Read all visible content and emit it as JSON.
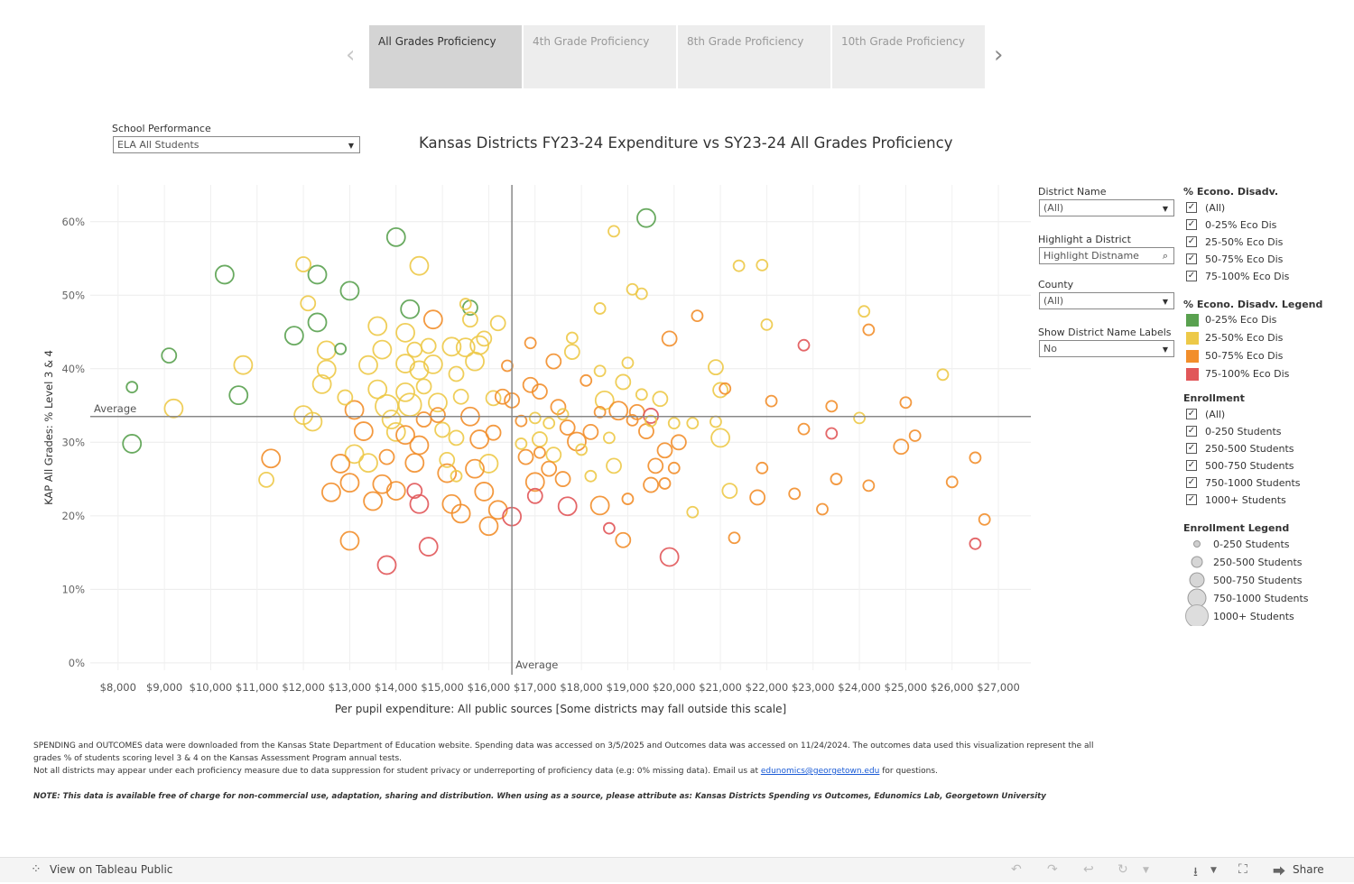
{
  "tabs": [
    "All Grades Proficiency",
    "4th Grade Proficiency",
    "8th Grade Proficiency",
    "10th Grade Proficiency"
  ],
  "nav": {
    "prev_icon": "chevron-left-icon",
    "next_icon": "chevron-right-icon"
  },
  "filters": {
    "school_performance_label": "School Performance",
    "school_performance_value": "ELA All Students",
    "district_name_label": "District Name",
    "district_name_value": "(All)",
    "highlight_label": "Highlight a District",
    "highlight_placeholder": "Highlight Distname",
    "county_label": "County",
    "county_value": "(All)",
    "labels_label": "Show District Name Labels",
    "labels_value": "No"
  },
  "eco_filter": {
    "title": "% Econo. Disadv.",
    "items": [
      "(All)",
      "0-25% Eco Dis",
      "25-50% Eco Dis",
      "50-75% Eco Dis",
      "75-100% Eco Dis"
    ]
  },
  "eco_legend": {
    "title": "% Econo. Disadv. Legend",
    "items": [
      {
        "label": "0-25% Eco Dis",
        "color": "#59a14f"
      },
      {
        "label": "25-50% Eco Dis",
        "color": "#edc948"
      },
      {
        "label": "50-75% Eco Dis",
        "color": "#f28e2b"
      },
      {
        "label": "75-100% Eco Dis",
        "color": "#e15759"
      }
    ]
  },
  "enroll_filter": {
    "title": "Enrollment",
    "items": [
      "(All)",
      "0-250 Students",
      "250-500 Students",
      "500-750 Students",
      "750-1000 Students",
      "1000+ Students"
    ]
  },
  "enroll_legend": {
    "title": "Enrollment Legend",
    "items": [
      "0-250 Students",
      "250-500 Students",
      "500-750 Students",
      "750-1000 Students",
      "1000+ Students"
    ]
  },
  "chart_data": {
    "type": "scatter",
    "title": "Kansas Districts FY23-24 Expenditure vs SY23-24 All Grades Proficiency",
    "xlabel": "Per pupil expenditure: All public sources [Some districts may fall outside this scale]",
    "ylabel": "KAP All Grades: % Level 3 & 4",
    "xlim": [
      7400,
      27700
    ],
    "ylim": [
      -1,
      65
    ],
    "x_ticks": [
      "$8,000",
      "$9,000",
      "$10,000",
      "$11,000",
      "$12,000",
      "$13,000",
      "$14,000",
      "$15,000",
      "$16,000",
      "$17,000",
      "$18,000",
      "$19,000",
      "$20,000",
      "$21,000",
      "$22,000",
      "$23,000",
      "$24,000",
      "$25,000",
      "$26,000",
      "$27,000"
    ],
    "x_tick_values": [
      8000,
      9000,
      10000,
      11000,
      12000,
      13000,
      14000,
      15000,
      16000,
      17000,
      18000,
      19000,
      20000,
      21000,
      22000,
      23000,
      24000,
      25000,
      26000,
      27000
    ],
    "y_ticks": [
      "0%",
      "10%",
      "20%",
      "30%",
      "40%",
      "50%",
      "60%"
    ],
    "y_tick_values": [
      0,
      10,
      20,
      30,
      40,
      50,
      60
    ],
    "reference_lines": {
      "x_average": 16500,
      "y_average": 33.5,
      "label": "Average"
    },
    "gridlines": true,
    "points": [
      [
        8300,
        37.5,
        1,
        0
      ],
      [
        8300,
        29.8,
        3,
        0
      ],
      [
        9100,
        41.8,
        2,
        0
      ],
      [
        10300,
        52.8,
        3,
        0
      ],
      [
        10600,
        36.4,
        3,
        0
      ],
      [
        11800,
        44.5,
        3,
        0
      ],
      [
        12300,
        52.8,
        3,
        0
      ],
      [
        12300,
        46.3,
        3,
        0
      ],
      [
        12800,
        42.7,
        1,
        0
      ],
      [
        13000,
        50.6,
        3,
        0
      ],
      [
        14000,
        57.9,
        3,
        0
      ],
      [
        14300,
        48.1,
        3,
        0
      ],
      [
        15600,
        48.3,
        2,
        0
      ],
      [
        19400,
        60.5,
        3,
        0
      ],
      [
        9200,
        34.6,
        3,
        1
      ],
      [
        10700,
        40.5,
        3,
        1
      ],
      [
        11200,
        24.9,
        2,
        1
      ],
      [
        12000,
        54.2,
        2,
        1
      ],
      [
        12000,
        33.7,
        3,
        1
      ],
      [
        12100,
        48.9,
        2,
        1
      ],
      [
        12200,
        32.8,
        3,
        1
      ],
      [
        12500,
        42.5,
        3,
        1
      ],
      [
        12500,
        39.9,
        3,
        1
      ],
      [
        12400,
        37.9,
        3,
        1
      ],
      [
        12900,
        36.1,
        2,
        1
      ],
      [
        13100,
        28.4,
        3,
        1
      ],
      [
        13400,
        40.5,
        3,
        1
      ],
      [
        13400,
        27.2,
        3,
        1
      ],
      [
        13600,
        45.8,
        3,
        1
      ],
      [
        13700,
        42.6,
        3,
        1
      ],
      [
        13600,
        37.2,
        3,
        1
      ],
      [
        13800,
        34.9,
        4,
        1
      ],
      [
        13900,
        33.1,
        3,
        1
      ],
      [
        14000,
        31.4,
        3,
        1
      ],
      [
        14200,
        44.9,
        3,
        1
      ],
      [
        14200,
        40.7,
        3,
        1
      ],
      [
        14200,
        36.8,
        3,
        1
      ],
      [
        14300,
        35.1,
        4,
        1
      ],
      [
        14400,
        42.6,
        2,
        1
      ],
      [
        14500,
        54.0,
        3,
        1
      ],
      [
        14500,
        39.8,
        3,
        1
      ],
      [
        14600,
        37.6,
        2,
        1
      ],
      [
        14700,
        43.1,
        2,
        1
      ],
      [
        14800,
        40.6,
        3,
        1
      ],
      [
        14900,
        35.4,
        3,
        1
      ],
      [
        15000,
        31.7,
        2,
        1
      ],
      [
        15200,
        43.0,
        3,
        1
      ],
      [
        15300,
        39.3,
        2,
        1
      ],
      [
        15400,
        36.2,
        2,
        1
      ],
      [
        15500,
        42.9,
        3,
        1
      ],
      [
        15600,
        46.7,
        2,
        1
      ],
      [
        15700,
        41.0,
        3,
        1
      ],
      [
        15800,
        43.2,
        3,
        1
      ],
      [
        15900,
        44.1,
        2,
        1
      ],
      [
        15500,
        48.8,
        1,
        1
      ],
      [
        16200,
        46.2,
        2,
        1
      ],
      [
        16100,
        36.0,
        2,
        1
      ],
      [
        16000,
        27.1,
        3,
        1
      ],
      [
        15300,
        30.6,
        2,
        1
      ],
      [
        15100,
        27.6,
        2,
        1
      ],
      [
        15300,
        25.4,
        1,
        1
      ],
      [
        16700,
        29.8,
        1,
        1
      ],
      [
        17000,
        33.3,
        1,
        1
      ],
      [
        17100,
        30.4,
        2,
        1
      ],
      [
        17300,
        32.6,
        1,
        1
      ],
      [
        17400,
        28.3,
        2,
        1
      ],
      [
        17800,
        42.3,
        2,
        1
      ],
      [
        17800,
        44.2,
        1,
        1
      ],
      [
        17600,
        33.8,
        1,
        1
      ],
      [
        18000,
        29.0,
        1,
        1
      ],
      [
        18200,
        25.4,
        1,
        1
      ],
      [
        18400,
        48.2,
        1,
        1
      ],
      [
        18400,
        39.7,
        1,
        1
      ],
      [
        18500,
        35.7,
        3,
        1
      ],
      [
        18600,
        30.6,
        1,
        1
      ],
      [
        18700,
        26.8,
        2,
        1
      ],
      [
        18700,
        58.7,
        1,
        1
      ],
      [
        18900,
        38.2,
        2,
        1
      ],
      [
        19000,
        40.8,
        1,
        1
      ],
      [
        19100,
        50.8,
        1,
        1
      ],
      [
        19300,
        50.2,
        1,
        1
      ],
      [
        19300,
        36.5,
        1,
        1
      ],
      [
        19500,
        32.9,
        1,
        1
      ],
      [
        19700,
        35.9,
        2,
        1
      ],
      [
        20000,
        32.6,
        1,
        1
      ],
      [
        20400,
        20.5,
        1,
        1
      ],
      [
        20400,
        32.6,
        1,
        1
      ],
      [
        20900,
        40.2,
        2,
        1
      ],
      [
        21000,
        37.1,
        2,
        1
      ],
      [
        21000,
        30.6,
        3,
        1
      ],
      [
        21400,
        54.0,
        1,
        1
      ],
      [
        21900,
        54.1,
        1,
        1
      ],
      [
        22000,
        46.0,
        1,
        1
      ],
      [
        24100,
        47.8,
        1,
        1
      ],
      [
        24000,
        33.3,
        1,
        1
      ],
      [
        25800,
        39.2,
        1,
        1
      ],
      [
        20900,
        32.8,
        1,
        1
      ],
      [
        21200,
        23.4,
        2,
        1
      ],
      [
        11300,
        27.8,
        3,
        2
      ],
      [
        12600,
        23.2,
        3,
        2
      ],
      [
        12800,
        27.1,
        3,
        2
      ],
      [
        13000,
        24.5,
        3,
        2
      ],
      [
        13000,
        16.6,
        3,
        2
      ],
      [
        13100,
        34.4,
        3,
        2
      ],
      [
        13300,
        31.5,
        3,
        2
      ],
      [
        13500,
        22.0,
        3,
        2
      ],
      [
        13700,
        24.3,
        3,
        2
      ],
      [
        13800,
        28.0,
        2,
        2
      ],
      [
        14000,
        23.4,
        3,
        2
      ],
      [
        14200,
        31.0,
        3,
        2
      ],
      [
        14400,
        27.2,
        3,
        2
      ],
      [
        14500,
        29.6,
        3,
        2
      ],
      [
        14600,
        33.1,
        2,
        2
      ],
      [
        14800,
        46.7,
        3,
        2
      ],
      [
        14900,
        33.7,
        2,
        2
      ],
      [
        15100,
        25.8,
        3,
        2
      ],
      [
        15200,
        21.6,
        3,
        2
      ],
      [
        15400,
        20.3,
        3,
        2
      ],
      [
        15600,
        33.5,
        3,
        2
      ],
      [
        15700,
        26.4,
        3,
        2
      ],
      [
        15800,
        30.4,
        3,
        2
      ],
      [
        15900,
        23.3,
        3,
        2
      ],
      [
        16000,
        18.6,
        3,
        2
      ],
      [
        16100,
        31.3,
        2,
        2
      ],
      [
        16200,
        20.8,
        3,
        2
      ],
      [
        16300,
        36.2,
        2,
        2
      ],
      [
        16400,
        40.4,
        1,
        2
      ],
      [
        16500,
        35.7,
        2,
        2
      ],
      [
        16700,
        32.9,
        1,
        2
      ],
      [
        16800,
        28.0,
        2,
        2
      ],
      [
        16900,
        37.8,
        2,
        2
      ],
      [
        17000,
        24.6,
        3,
        2
      ],
      [
        17100,
        36.9,
        2,
        2
      ],
      [
        17300,
        26.4,
        2,
        2
      ],
      [
        17400,
        41.0,
        2,
        2
      ],
      [
        17600,
        25.0,
        2,
        2
      ],
      [
        17700,
        32.0,
        2,
        2
      ],
      [
        17900,
        30.1,
        3,
        2
      ],
      [
        18100,
        38.4,
        1,
        2
      ],
      [
        18200,
        31.4,
        2,
        2
      ],
      [
        18400,
        21.4,
        3,
        2
      ],
      [
        18800,
        34.3,
        3,
        2
      ],
      [
        19000,
        22.3,
        1,
        2
      ],
      [
        19200,
        34.1,
        2,
        2
      ],
      [
        19400,
        31.5,
        2,
        2
      ],
      [
        19500,
        24.2,
        2,
        2
      ],
      [
        19600,
        26.8,
        2,
        2
      ],
      [
        19800,
        28.9,
        2,
        2
      ],
      [
        19900,
        44.1,
        2,
        2
      ],
      [
        20000,
        26.5,
        1,
        2
      ],
      [
        20100,
        30.0,
        2,
        2
      ],
      [
        19800,
        24.4,
        1,
        2
      ],
      [
        20500,
        47.2,
        1,
        2
      ],
      [
        21100,
        37.3,
        1,
        2
      ],
      [
        21300,
        17.0,
        1,
        2
      ],
      [
        21800,
        22.5,
        2,
        2
      ],
      [
        21900,
        26.5,
        1,
        2
      ],
      [
        22100,
        35.6,
        1,
        2
      ],
      [
        22600,
        23.0,
        1,
        2
      ],
      [
        22800,
        31.8,
        1,
        2
      ],
      [
        23200,
        20.9,
        1,
        2
      ],
      [
        23400,
        34.9,
        1,
        2
      ],
      [
        23500,
        25.0,
        1,
        2
      ],
      [
        24200,
        45.3,
        1,
        2
      ],
      [
        24200,
        24.1,
        1,
        2
      ],
      [
        24900,
        29.4,
        2,
        2
      ],
      [
        25000,
        35.4,
        1,
        2
      ],
      [
        25200,
        30.9,
        1,
        2
      ],
      [
        26000,
        24.6,
        1,
        2
      ],
      [
        26500,
        27.9,
        1,
        2
      ],
      [
        26700,
        19.5,
        1,
        2
      ],
      [
        18900,
        16.7,
        2,
        2
      ],
      [
        16900,
        43.5,
        1,
        2
      ],
      [
        19100,
        33.0,
        1,
        2
      ],
      [
        18400,
        34.1,
        1,
        2
      ],
      [
        17100,
        28.6,
        1,
        2
      ],
      [
        17500,
        34.8,
        2,
        2
      ],
      [
        13800,
        13.3,
        3,
        3
      ],
      [
        14400,
        23.4,
        2,
        3
      ],
      [
        14500,
        21.6,
        3,
        3
      ],
      [
        14700,
        15.8,
        3,
        3
      ],
      [
        16500,
        19.9,
        3,
        3
      ],
      [
        17000,
        22.7,
        2,
        3
      ],
      [
        17700,
        21.3,
        3,
        3
      ],
      [
        18600,
        18.3,
        1,
        3
      ],
      [
        19500,
        33.6,
        2,
        3
      ],
      [
        19900,
        14.4,
        3,
        3
      ],
      [
        23400,
        31.2,
        1,
        3
      ],
      [
        22800,
        43.2,
        1,
        3
      ],
      [
        26500,
        16.2,
        1,
        3
      ]
    ]
  },
  "notes": {
    "line1": "SPENDING and OUTCOMES data were downloaded from the Kansas State Department of Education website. Spending data was accessed on 3/5/2025 and Outcomes data was accessed on 11/24/2024. The outcomes data used this visualization represent the all",
    "line2": "grades % of students scoring level 3 & 4 on the Kansas Assessment Program annual tests.",
    "line3_pre": "Not all districts may appear under each proficiency measure due to data suppression for student privacy or underreporting of proficiency data (e.g: 0% missing data). Email us at ",
    "line3_link": "edunomics@georgetown.edu",
    "line3_post": " for questions.",
    "note": "NOTE: This data is available free of charge for non-commercial use, adaptation, sharing and distribution. When using as a source, please attribute as: Kansas Districts Spending vs Outcomes, Edunomics Lab, Georgetown University"
  },
  "toolbar": {
    "view_label": "View on Tableau Public",
    "share_label": "Share",
    "icons": [
      "tableau-logo-icon",
      "undo-icon",
      "redo-icon",
      "revert-icon",
      "refresh-icon",
      "pause-icon",
      "download-icon",
      "fullscreen-icon",
      "share-icon"
    ]
  }
}
